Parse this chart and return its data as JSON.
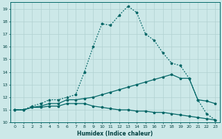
{
  "xlabel": "Humidex (Indice chaleur)",
  "bg_color": "#cce8e8",
  "grid_color": "#b0d0d0",
  "line_color": "#006666",
  "xlim": [
    -0.5,
    23.5
  ],
  "ylim": [
    10,
    19.5
  ],
  "xticks": [
    0,
    1,
    2,
    3,
    4,
    5,
    6,
    7,
    8,
    9,
    10,
    11,
    12,
    13,
    14,
    15,
    16,
    17,
    18,
    19,
    20,
    21,
    22,
    23
  ],
  "yticks": [
    10,
    11,
    12,
    13,
    14,
    15,
    16,
    17,
    18,
    19
  ],
  "line_max_x": [
    0,
    1,
    2,
    3,
    4,
    5,
    6,
    7,
    8,
    9,
    10,
    11,
    12,
    13,
    14,
    15,
    16,
    17,
    18,
    19,
    20,
    21,
    22,
    23
  ],
  "line_max_y": [
    11,
    11,
    11.3,
    11.5,
    11.8,
    11.8,
    12.0,
    12.2,
    14.0,
    16.0,
    17.8,
    17.7,
    18.5,
    19.2,
    18.7,
    17.0,
    16.5,
    15.5,
    14.7,
    14.5,
    13.5,
    11.8,
    10.7,
    10.2
  ],
  "line_mean_x": [
    0,
    1,
    2,
    3,
    4,
    5,
    6,
    7,
    8,
    9,
    10,
    11,
    12,
    13,
    14,
    15,
    16,
    17,
    18,
    19,
    20,
    21,
    22,
    23
  ],
  "line_mean_y": [
    11,
    11,
    11.2,
    11.3,
    11.5,
    11.5,
    11.8,
    11.8,
    11.9,
    12.0,
    12.2,
    12.4,
    12.6,
    12.8,
    13.0,
    13.2,
    13.4,
    13.6,
    13.8,
    13.5,
    13.5,
    11.8,
    11.7,
    11.5
  ],
  "line_min_x": [
    0,
    1,
    2,
    3,
    4,
    5,
    6,
    7,
    8,
    9,
    10,
    11,
    12,
    13,
    14,
    15,
    16,
    17,
    18,
    19,
    20,
    21,
    22,
    23
  ],
  "line_min_y": [
    11,
    11,
    11.2,
    11.2,
    11.3,
    11.3,
    11.5,
    11.5,
    11.5,
    11.3,
    11.2,
    11.1,
    11.0,
    11.0,
    10.9,
    10.9,
    10.8,
    10.8,
    10.7,
    10.6,
    10.5,
    10.4,
    10.3,
    10.2
  ]
}
